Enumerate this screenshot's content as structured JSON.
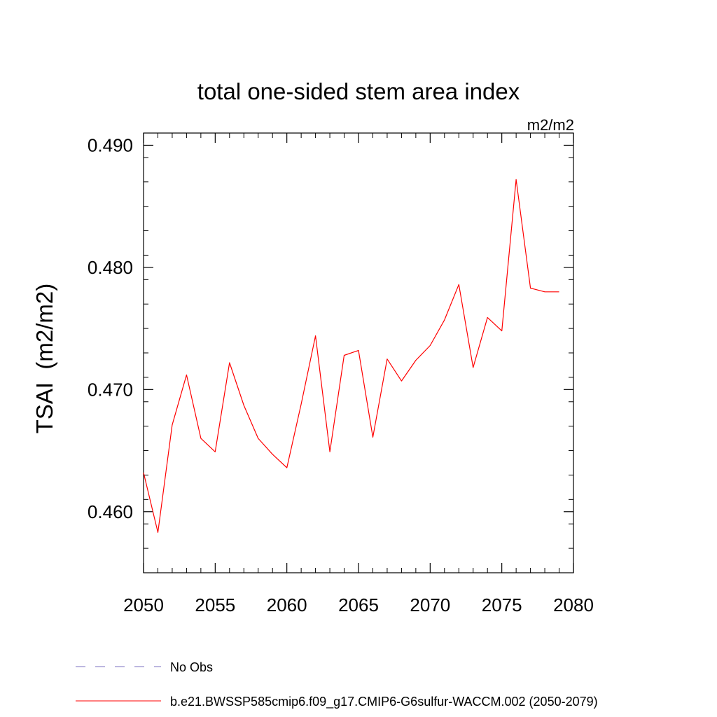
{
  "chart_data": {
    "type": "line",
    "title": "total one-sided stem area index",
    "units": "m2/m2",
    "ylabel": "TSAI  (m2/m2)",
    "xlabel": "",
    "xlim": [
      2050,
      2080
    ],
    "ylim": [
      0.455,
      0.491
    ],
    "x_ticks": [
      2050,
      2055,
      2060,
      2065,
      2070,
      2075,
      2080
    ],
    "y_ticks": [
      0.46,
      0.47,
      0.48,
      0.49
    ],
    "y_tick_labels": [
      "0.460",
      "0.470",
      "0.480",
      "0.490"
    ],
    "x_minor_step": 1,
    "y_minor_step": 0.002,
    "grid": false,
    "legend_position": "bottom-left",
    "series": [
      {
        "name": "b.e21.BWSSP585cmip6.f09_g17.CMIP6-G6sulfur-WACCM.002 (2050-2079)",
        "color": "#ff0000",
        "x": [
          2050,
          2051,
          2052,
          2053,
          2054,
          2055,
          2056,
          2057,
          2058,
          2059,
          2060,
          2061,
          2062,
          2063,
          2064,
          2065,
          2066,
          2067,
          2068,
          2069,
          2070,
          2071,
          2072,
          2073,
          2074,
          2075,
          2076,
          2077,
          2078,
          2079
        ],
        "y": [
          0.4632,
          0.4583,
          0.4671,
          0.4712,
          0.466,
          0.4649,
          0.4722,
          0.4687,
          0.466,
          0.4647,
          0.4636,
          0.4688,
          0.4744,
          0.4649,
          0.4728,
          0.4732,
          0.4661,
          0.4725,
          0.4707,
          0.4724,
          0.4736,
          0.4757,
          0.4786,
          0.4718,
          0.4759,
          0.4748,
          0.4872,
          0.4783,
          0.478,
          0.478
        ]
      }
    ],
    "legend": [
      {
        "label": "No Obs",
        "color": "#7b6fc0",
        "style": "dashed"
      },
      {
        "label": "b.e21.BWSSP585cmip6.f09_g17.CMIP6-G6sulfur-WACCM.002 (2050-2079)",
        "color": "#ff0000",
        "style": "solid"
      }
    ]
  }
}
